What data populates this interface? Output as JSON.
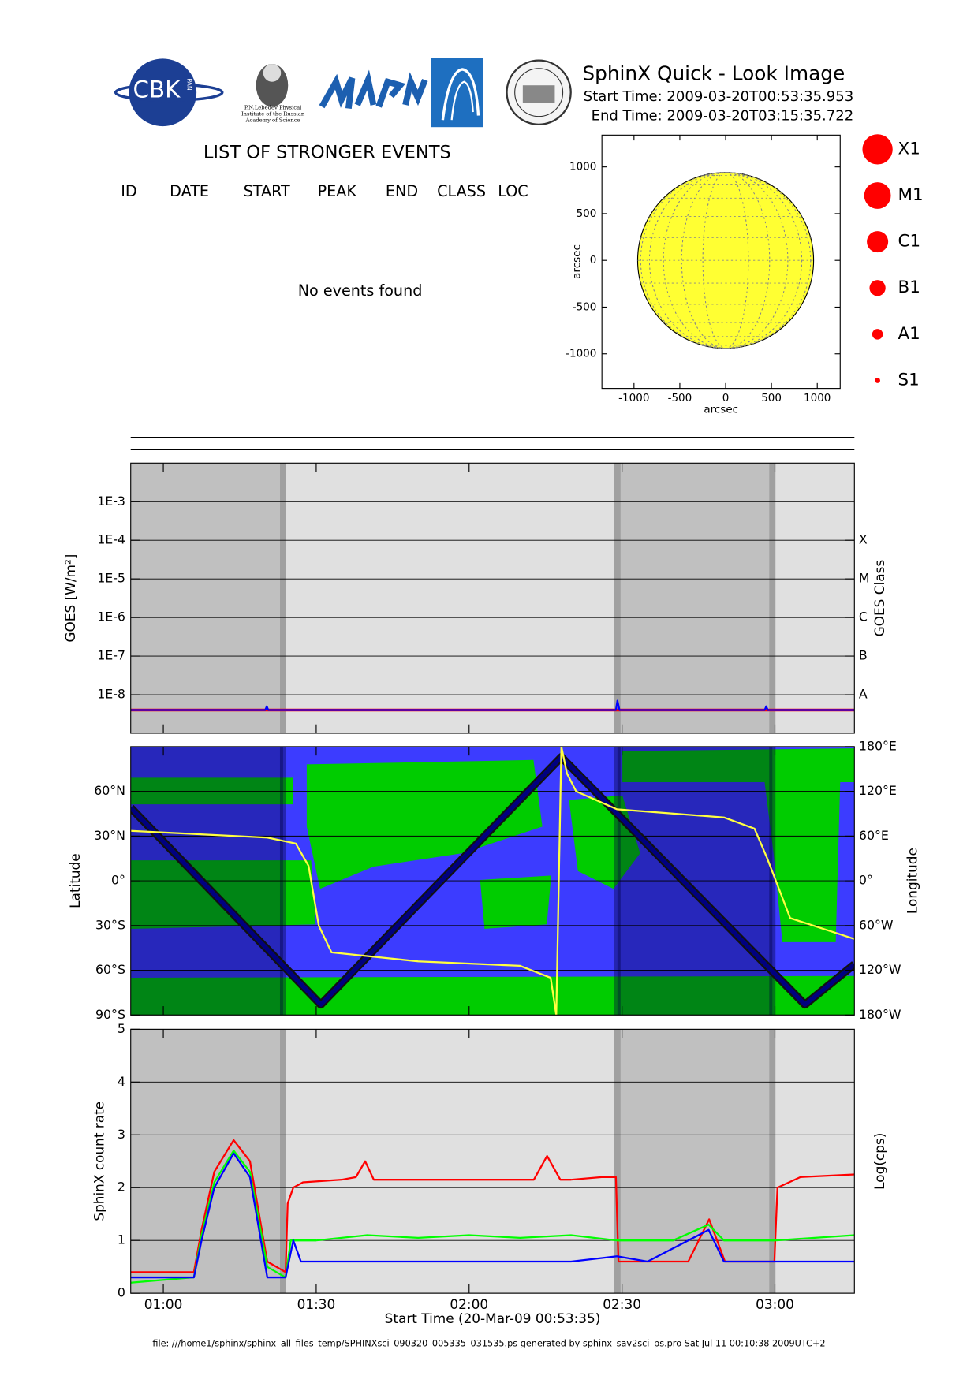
{
  "header": {
    "title": "SphinX Quick - Look Image",
    "start_time": "Start Time: 2009-03-20T00:53:35.953",
    "end_time": "End Time: 2009-03-20T03:15:35.722",
    "logo_cbk": "CBK",
    "logo_pan": "PAN",
    "logo_lebedev": "P.N.Lebedev Physical Institute of the Russian Academy of Science"
  },
  "events": {
    "title": "LIST OF STRONGER EVENTS",
    "columns": [
      "ID",
      "DATE",
      "START",
      "PEAK",
      "END",
      "CLASS",
      "LOC"
    ],
    "message": "No events found"
  },
  "flare_classes": [
    "X1",
    "M1",
    "C1",
    "B1",
    "A1",
    "S1"
  ],
  "chart_data": [
    {
      "type": "disk",
      "xlabel": "arcsec",
      "ylabel": "arcsec",
      "xlim": [
        -1350,
        1250
      ],
      "xticks": [
        -1000,
        -500,
        0,
        500,
        1000
      ],
      "ylim": [
        -1370,
        1340
      ],
      "yticks": [
        -1000,
        -500,
        0,
        500,
        1000
      ],
      "disk_radius": 960,
      "color": "#ffff33"
    },
    {
      "type": "line",
      "log": true,
      "grid": true,
      "ylabel": "GOES [W/m²]",
      "y2label": "GOES Class",
      "xlim": [
        53.6,
        195.6
      ],
      "xticks": [
        {
          "value": 60,
          "label": "01:00"
        },
        {
          "value": 90,
          "label": "01:30"
        },
        {
          "value": 120,
          "label": "02:00"
        },
        {
          "value": 150,
          "label": "02:30"
        },
        {
          "value": 180,
          "label": "03:00"
        }
      ],
      "ylim": [
        1e-09,
        0.01
      ],
      "yticks": [
        {
          "value": 1e-08,
          "label": "1E-8"
        },
        {
          "value": 1e-07,
          "label": "1E-7"
        },
        {
          "value": 1e-06,
          "label": "1E-6"
        },
        {
          "value": 1e-05,
          "label": "1E-5"
        },
        {
          "value": 0.0001,
          "label": "1E-4"
        },
        {
          "value": 0.001,
          "label": "1E-3"
        }
      ],
      "y2lim": [
        1e-09,
        0.01
      ],
      "y2ticks": [
        {
          "value": 1e-08,
          "label": "A"
        },
        {
          "value": 1e-07,
          "label": "B"
        },
        {
          "value": 1e-06,
          "label": "C"
        },
        {
          "value": 1e-05,
          "label": "M"
        },
        {
          "value": 0.0001,
          "label": "X"
        }
      ],
      "night_intervals": [
        [
          53.6,
          83.5
        ],
        [
          149.1,
          179.5
        ]
      ],
      "series": [
        {
          "color": "#ff0000",
          "x": [
            53.6,
            195.6
          ],
          "values": [
            4e-09,
            4e-09
          ]
        },
        {
          "color": "#0000ff",
          "x": [
            53.6,
            80,
            80.3,
            80.6,
            100,
            148.8,
            149.1,
            149.5,
            178,
            178.3,
            178.6,
            195.6
          ],
          "values": [
            4e-09,
            4e-09,
            5e-09,
            4e-09,
            4e-09,
            4e-09,
            7e-09,
            4e-09,
            4e-09,
            5e-09,
            4e-09,
            4e-09
          ]
        }
      ]
    },
    {
      "type": "line",
      "grid": true,
      "map": true,
      "ylabel": "Latitude",
      "y2label": "Longitude",
      "xlim": [
        53.6,
        195.6
      ],
      "xticks": [
        {
          "value": 60,
          "label": "01:00"
        },
        {
          "value": 90,
          "label": "01:30"
        },
        {
          "value": 120,
          "label": "02:00"
        },
        {
          "value": 150,
          "label": "02:30"
        },
        {
          "value": 180,
          "label": "03:00"
        }
      ],
      "ylim": [
        -90,
        90
      ],
      "yticks": [
        {
          "value": -90,
          "label": "90°S"
        },
        {
          "value": -60,
          "label": "60°S"
        },
        {
          "value": -30,
          "label": "30°S"
        },
        {
          "value": 0,
          "label": "0°"
        },
        {
          "value": 30,
          "label": "30°N"
        },
        {
          "value": 60,
          "label": "60°N"
        }
      ],
      "y2lim": [
        -180,
        180
      ],
      "y2ticks": [
        {
          "value": -180,
          "label": "180°W"
        },
        {
          "value": -120,
          "label": "120°W"
        },
        {
          "value": -60,
          "label": "60°W"
        },
        {
          "value": 0,
          "label": "0°"
        },
        {
          "value": 60,
          "label": "60°E"
        },
        {
          "value": 120,
          "label": "120°E"
        },
        {
          "value": 180,
          "label": "180°E"
        }
      ],
      "night_intervals": [
        [
          53.6,
          83.5
        ],
        [
          149.1,
          179.5
        ]
      ],
      "series": [
        {
          "color": "#000080",
          "x": [
            53.6,
            90.9,
            138.1,
            185.9,
            195.6
          ],
          "values": [
            49,
            -83,
            83,
            -83,
            -56
          ]
        },
        {
          "color": "#ffff40",
          "axis": "y2",
          "x": [
            53.6,
            80.4,
            86,
            88.5,
            90.5,
            93,
            110,
            130,
            136,
            137.1,
            138.1,
            139.2,
            141,
            149,
            170,
            176,
            178.5,
            183,
            195.6
          ],
          "values": [
            67,
            58,
            50,
            20,
            -60,
            -96,
            -108,
            -114,
            -130,
            -180,
            180,
            144,
            120,
            96,
            85,
            70,
            30,
            -50,
            -78
          ]
        }
      ]
    },
    {
      "type": "line",
      "grid": true,
      "ylabel": "SphinX count rate",
      "y2label": "Log(cps)",
      "xlabel": "Start Time (20-Mar-09 00:53:35)",
      "xlim": [
        53.6,
        195.6
      ],
      "xticks": [
        {
          "value": 60,
          "label": "01:00"
        },
        {
          "value": 90,
          "label": "01:30"
        },
        {
          "value": 120,
          "label": "02:00"
        },
        {
          "value": 150,
          "label": "02:30"
        },
        {
          "value": 180,
          "label": "03:00"
        }
      ],
      "ylim": [
        0,
        5
      ],
      "yticks": [
        0,
        1,
        2,
        3,
        4,
        5
      ],
      "night_intervals": [
        [
          53.6,
          83.5
        ],
        [
          149.1,
          179.5
        ]
      ],
      "series": [
        {
          "color": "#ff0000",
          "x": [
            53.6,
            60,
            66,
            67.5,
            70,
            73.8,
            77,
            80.4,
            84,
            84.4,
            85.5,
            87.4,
            95,
            97.8,
            99.6,
            101.3,
            110,
            120,
            130,
            132.7,
            135.3,
            137.9,
            140,
            146,
            148.8,
            149.3,
            155,
            163,
            167.1,
            170.2,
            175,
            179.9,
            180.5,
            185,
            195.6
          ],
          "values": [
            0.4,
            0.4,
            0.4,
            1.2,
            2.3,
            2.9,
            2.5,
            0.6,
            0.4,
            1.7,
            2.0,
            2.1,
            2.15,
            2.2,
            2.5,
            2.15,
            2.15,
            2.15,
            2.15,
            2.15,
            2.6,
            2.15,
            2.15,
            2.2,
            2.2,
            0.6,
            0.6,
            0.6,
            1.4,
            0.6,
            0.6,
            0.6,
            2.0,
            2.2,
            2.25
          ]
        },
        {
          "color": "#00ff00",
          "x": [
            53.6,
            66,
            67.5,
            70,
            73.8,
            77,
            80.4,
            84,
            85,
            90,
            100,
            110,
            120,
            130,
            140,
            149,
            160,
            167,
            170,
            180,
            195.6
          ],
          "values": [
            0.2,
            0.3,
            1.1,
            2.1,
            2.7,
            2.3,
            0.5,
            0.3,
            1.0,
            1.0,
            1.1,
            1.05,
            1.1,
            1.05,
            1.1,
            1.0,
            1.0,
            1.3,
            1.0,
            1.0,
            1.1
          ]
        },
        {
          "color": "#0000ff",
          "x": [
            53.6,
            66,
            67.5,
            70,
            73.8,
            77,
            80.4,
            84,
            85.5,
            87,
            100,
            120,
            140,
            149,
            155,
            167,
            170,
            180,
            195.6
          ],
          "values": [
            0.3,
            0.3,
            1.0,
            2.0,
            2.65,
            2.2,
            0.3,
            0.3,
            1.0,
            0.6,
            0.6,
            0.6,
            0.6,
            0.7,
            0.6,
            1.2,
            0.6,
            0.6,
            0.6
          ]
        }
      ]
    }
  ],
  "footer": "file: ///home1/sphinx/sphinx_all_files_temp/SPHINXsci_090320_005335_031535.ps generated by sphinx_sav2sci_ps.pro Sat Jul 11 00:10:38 2009UTC+2"
}
